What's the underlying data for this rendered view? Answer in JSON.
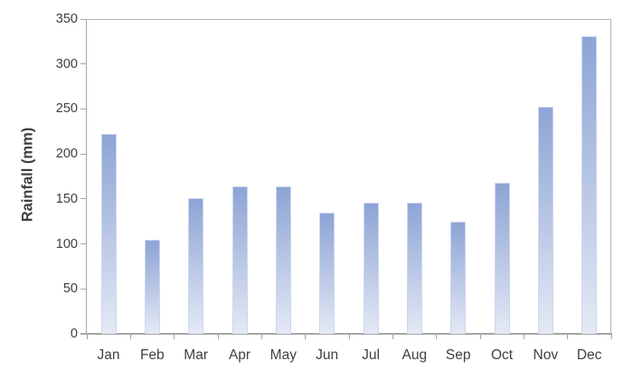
{
  "chart_data": {
    "type": "bar",
    "title": "",
    "categories": [
      "Jan",
      "Feb",
      "Mar",
      "Apr",
      "May",
      "Jun",
      "Jul",
      "Aug",
      "Sep",
      "Oct",
      "Nov",
      "Dec"
    ],
    "values": [
      222,
      105,
      151,
      164,
      164,
      135,
      146,
      146,
      125,
      168,
      252,
      331
    ],
    "xlabel": "",
    "ylabel": "Rainfall (mm)",
    "ylim": [
      0,
      350
    ],
    "yticks": [
      0,
      50,
      100,
      150,
      200,
      250,
      300,
      350
    ],
    "grid": false,
    "legend": false,
    "colors": {
      "bar_gradient_top": "#8da4d5",
      "bar_gradient_bottom": "#e4e9f5",
      "bar_border": "#ccd7ee",
      "axis_line": "#a6a6a6",
      "plot_border": "#b4b4b4",
      "tick_label_text": "#404040",
      "axis_title_text": "#3f3f3f",
      "background": "#ffffff"
    }
  }
}
